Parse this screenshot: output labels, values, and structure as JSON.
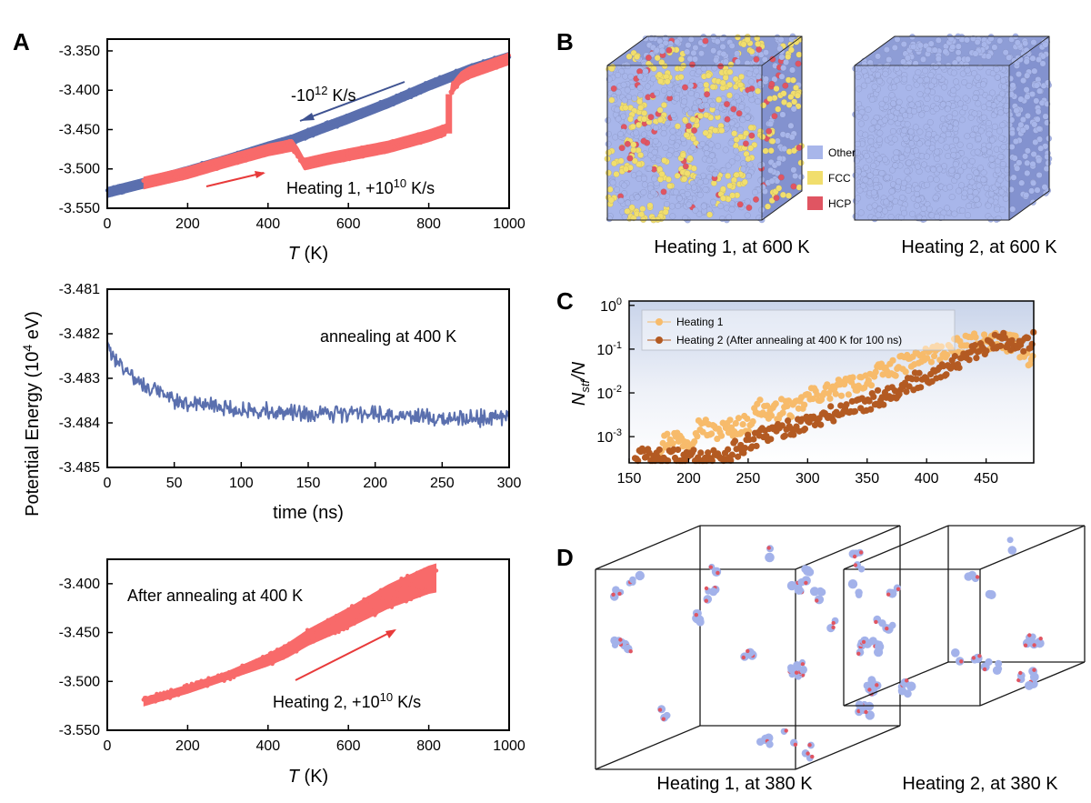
{
  "panel_labels": {
    "a": "A",
    "b": "B",
    "c": "C",
    "d": "D"
  },
  "shared_ylabel": {
    "text": "Potential Energy (",
    "sup": "4",
    "base": "10",
    "unit": " eV)"
  },
  "colors": {
    "blue": "#5a6fae",
    "red": "#f86a6a",
    "orange": "#f7bb6b",
    "brown": "#b35a22",
    "other_atom": "#a8b6ea",
    "fcc_atom": "#f1de6d",
    "hcp_atom": "#e05562"
  },
  "chart_data": [
    {
      "id": "A1",
      "type": "line",
      "xlabel_italic": "T",
      "xlabel_rest": " (K)",
      "xlim": [
        0,
        1000
      ],
      "ylim": [
        -3.55,
        -3.335
      ],
      "xticks": [
        "0",
        "200",
        "400",
        "600",
        "800",
        "1000"
      ],
      "xtick_values": [
        0,
        200,
        400,
        600,
        800,
        1000
      ],
      "yticks": [
        "-3.550",
        "-3.500",
        "-3.450",
        "-3.400",
        "-3.350"
      ],
      "ytick_values": [
        -3.55,
        -3.5,
        -3.45,
        -3.4,
        -3.35
      ],
      "series": [
        {
          "name": "Cooling -10^12 K/s",
          "color": "#5a6fae",
          "x": [
            0,
            100,
            200,
            300,
            400,
            460,
            500,
            600,
            700,
            800,
            900,
            1000
          ],
          "y": [
            -3.53,
            -3.517,
            -3.503,
            -3.488,
            -3.472,
            -3.463,
            -3.455,
            -3.436,
            -3.416,
            -3.394,
            -3.374,
            -3.358
          ]
        },
        {
          "name": "Heating 1, +10^10 K/s",
          "color": "#f86a6a",
          "x": [
            90,
            200,
            300,
            400,
            460,
            475,
            490,
            550,
            600,
            700,
            800,
            845,
            848,
            855,
            870,
            880,
            900,
            1000
          ],
          "y": [
            -3.518,
            -3.505,
            -3.49,
            -3.476,
            -3.47,
            -3.48,
            -3.494,
            -3.487,
            -3.482,
            -3.472,
            -3.458,
            -3.45,
            -3.43,
            -3.4,
            -3.39,
            -3.384,
            -3.378,
            -3.36
          ]
        }
      ],
      "annotations": {
        "cool_base": "-10",
        "cool_sup": "12",
        "cool_rest": " K/s",
        "heat_pre": "Heating 1, +10",
        "heat_sup": "10",
        "heat_rest": " K/s"
      }
    },
    {
      "id": "A2",
      "type": "line",
      "xlabel": "time (ns)",
      "xlim": [
        0,
        300
      ],
      "ylim": [
        -3.485,
        -3.481
      ],
      "xticks": [
        "0",
        "50",
        "100",
        "150",
        "200",
        "250",
        "300"
      ],
      "xtick_values": [
        0,
        50,
        100,
        150,
        200,
        250,
        300
      ],
      "yticks": [
        "-3.485",
        "-3.484",
        "-3.483",
        "-3.482",
        "-3.481"
      ],
      "ytick_values": [
        -3.485,
        -3.484,
        -3.483,
        -3.482,
        -3.481
      ],
      "series": [
        {
          "name": "annealing at 400 K",
          "color": "#5a6fae",
          "x": [
            0,
            10,
            20,
            30,
            50,
            75,
            100,
            150,
            200,
            250,
            300
          ],
          "y": [
            -3.4823,
            -3.4827,
            -3.483,
            -3.4832,
            -3.4835,
            -3.4836,
            -3.4837,
            -3.4838,
            -3.4838,
            -3.4839,
            -3.4839
          ]
        }
      ],
      "annotations": {
        "text": "annealing at 400 K"
      }
    },
    {
      "id": "A3",
      "type": "line",
      "xlabel_italic": "T",
      "xlabel_rest": " (K)",
      "xlim": [
        0,
        1000
      ],
      "ylim": [
        -3.55,
        -3.375
      ],
      "xticks": [
        "0",
        "200",
        "400",
        "600",
        "800",
        "1000"
      ],
      "xtick_values": [
        0,
        200,
        400,
        600,
        800,
        1000
      ],
      "yticks": [
        "-3.550",
        "-3.500",
        "-3.450",
        "-3.400"
      ],
      "ytick_values": [
        -3.55,
        -3.5,
        -3.45,
        -3.4
      ],
      "series": [
        {
          "name": "Heating 2, +10^10 K/s",
          "color": "#f86a6a",
          "x": [
            90,
            200,
            300,
            400,
            450,
            500,
            600,
            700,
            800,
            820
          ],
          "y": [
            -3.521,
            -3.508,
            -3.494,
            -3.478,
            -3.468,
            -3.455,
            -3.435,
            -3.413,
            -3.396,
            -3.394
          ]
        }
      ],
      "annotations": {
        "top": "After annealing at 400 K",
        "heat_pre": "Heating 2, +10",
        "heat_sup": "10",
        "heat_rest": " K/s"
      }
    },
    {
      "id": "C",
      "type": "scatter",
      "ylabel": {
        "n": "N",
        "sub": "stf",
        "rest": "/N"
      },
      "xlim": [
        150,
        490
      ],
      "ylog": true,
      "ylim_exp": [
        -3.6,
        0.1
      ],
      "xticks": [
        "150",
        "200",
        "250",
        "300",
        "350",
        "400",
        "450"
      ],
      "xtick_values": [
        150,
        200,
        250,
        300,
        350,
        400,
        450
      ],
      "yticks": [
        {
          "base": "10",
          "sup": "0",
          "exp": 0
        },
        {
          "base": "10",
          "sup": "-1",
          "exp": -1
        },
        {
          "base": "10",
          "sup": "-2",
          "exp": -2
        },
        {
          "base": "10",
          "sup": "-3",
          "exp": -3
        }
      ],
      "series": [
        {
          "name": "Heating 1",
          "color": "#f7bb6b",
          "x": [
            170,
            185,
            200,
            210,
            220,
            235,
            250,
            260,
            270,
            280,
            290,
            300,
            320,
            340,
            360,
            380,
            400,
            420,
            440,
            460,
            475,
            490
          ],
          "logy": [
            -3.35,
            -3.0,
            -3.1,
            -2.7,
            -2.9,
            -2.8,
            -2.7,
            -2.3,
            -2.5,
            -2.3,
            -2.4,
            -2.1,
            -1.95,
            -1.8,
            -1.55,
            -1.35,
            -1.15,
            -1.0,
            -0.85,
            -0.8,
            -0.9,
            -1.3
          ]
        },
        {
          "name": "Heating 2 (After annealing at 400 K for 100 ns)",
          "color": "#b35a22",
          "x": [
            155,
            175,
            200,
            225,
            240,
            255,
            265,
            280,
            295,
            310,
            330,
            350,
            370,
            390,
            410,
            430,
            450,
            465,
            480,
            490
          ],
          "logy": [
            -3.4,
            -3.5,
            -3.5,
            -3.45,
            -3.3,
            -3.1,
            -2.95,
            -2.85,
            -2.7,
            -2.6,
            -2.4,
            -2.2,
            -2.0,
            -1.75,
            -1.5,
            -1.25,
            -0.95,
            -0.8,
            -0.85,
            -0.8
          ]
        }
      ]
    }
  ],
  "panel_b": {
    "legend": [
      "Other",
      "FCC",
      "HCP"
    ],
    "caption_left": "Heating 1, at 600 K",
    "caption_right": "Heating 2, at 600 K"
  },
  "panel_d": {
    "caption_left": "Heating 1, at 380 K",
    "caption_right": "Heating 2, at 380 K"
  }
}
